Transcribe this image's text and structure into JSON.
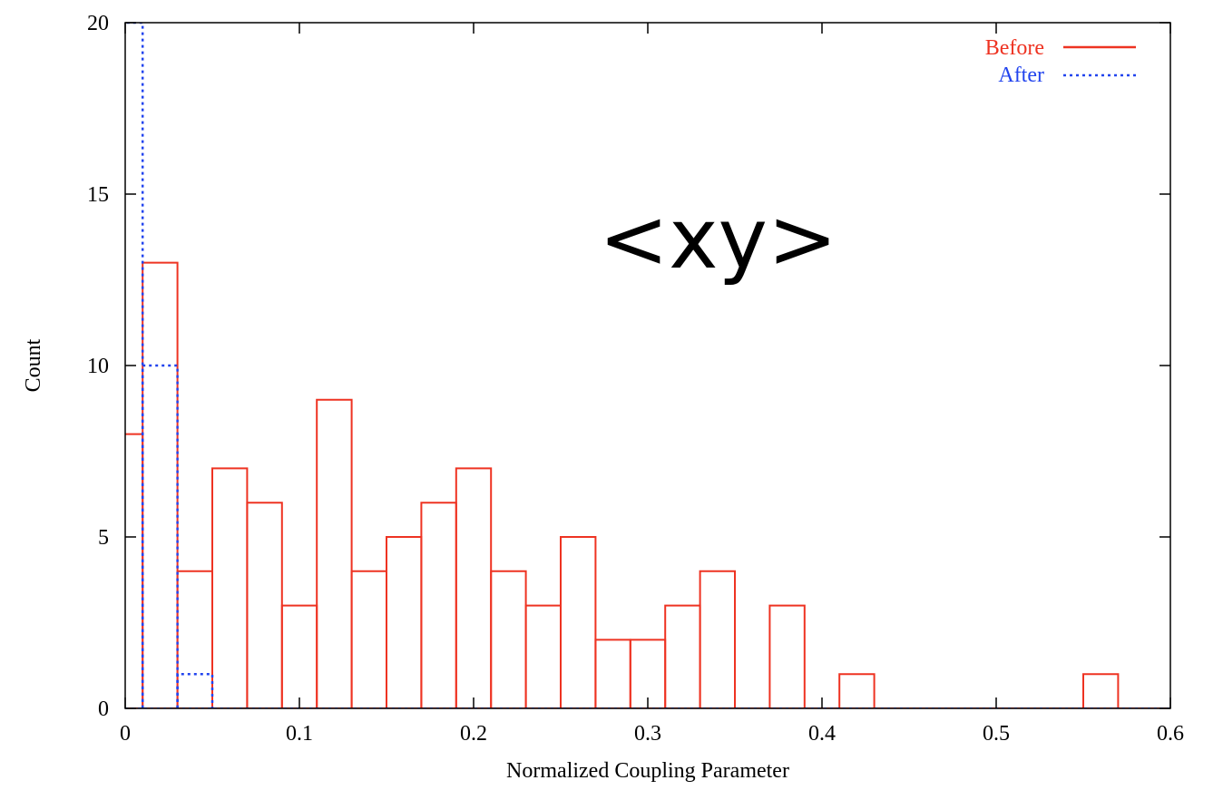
{
  "chart_data": {
    "type": "bar",
    "subtype": "step-histogram",
    "xlabel": "Normalized Coupling Parameter",
    "ylabel": "Count",
    "xlim": [
      0,
      0.6
    ],
    "ylim": [
      0,
      20
    ],
    "xticks": [
      "0",
      "0.1",
      "0.2",
      "0.3",
      "0.4",
      "0.5",
      "0.6"
    ],
    "yticks": [
      "0",
      "5",
      "10",
      "15",
      "20"
    ],
    "grid": false,
    "legend_position": "top-right",
    "annotation": "<xy>",
    "bins": [
      [
        -0.01,
        0.01
      ],
      [
        0.01,
        0.03
      ],
      [
        0.03,
        0.05
      ],
      [
        0.05,
        0.07
      ],
      [
        0.07,
        0.09
      ],
      [
        0.09,
        0.11
      ],
      [
        0.11,
        0.13
      ],
      [
        0.13,
        0.15
      ],
      [
        0.15,
        0.17
      ],
      [
        0.17,
        0.19
      ],
      [
        0.19,
        0.21
      ],
      [
        0.21,
        0.23
      ],
      [
        0.23,
        0.25
      ],
      [
        0.25,
        0.27
      ],
      [
        0.27,
        0.29
      ],
      [
        0.29,
        0.31
      ],
      [
        0.31,
        0.33
      ],
      [
        0.33,
        0.35
      ],
      [
        0.35,
        0.37
      ],
      [
        0.37,
        0.39
      ],
      [
        0.39,
        0.41
      ],
      [
        0.41,
        0.43
      ],
      [
        0.43,
        0.45
      ],
      [
        0.45,
        0.47
      ],
      [
        0.47,
        0.49
      ],
      [
        0.49,
        0.51
      ],
      [
        0.51,
        0.53
      ],
      [
        0.53,
        0.55
      ],
      [
        0.55,
        0.57
      ],
      [
        0.57,
        0.59
      ]
    ],
    "series": [
      {
        "name": "Before",
        "color": "#ee3322",
        "style": "solid",
        "values": [
          8,
          13,
          4,
          7,
          6,
          3,
          9,
          4,
          5,
          6,
          7,
          4,
          3,
          5,
          2,
          2,
          3,
          4,
          0,
          3,
          0,
          1,
          0,
          0,
          0,
          0,
          0,
          0,
          1,
          0
        ]
      },
      {
        "name": "After",
        "color": "#2244ee",
        "style": "dotted",
        "values": [
          20,
          10,
          1,
          0,
          0,
          0,
          0,
          0,
          0,
          0,
          0,
          0,
          0,
          0,
          0,
          0,
          0,
          0,
          0,
          0,
          0,
          0,
          0,
          0,
          0,
          0,
          0,
          0,
          0,
          0
        ]
      }
    ]
  }
}
